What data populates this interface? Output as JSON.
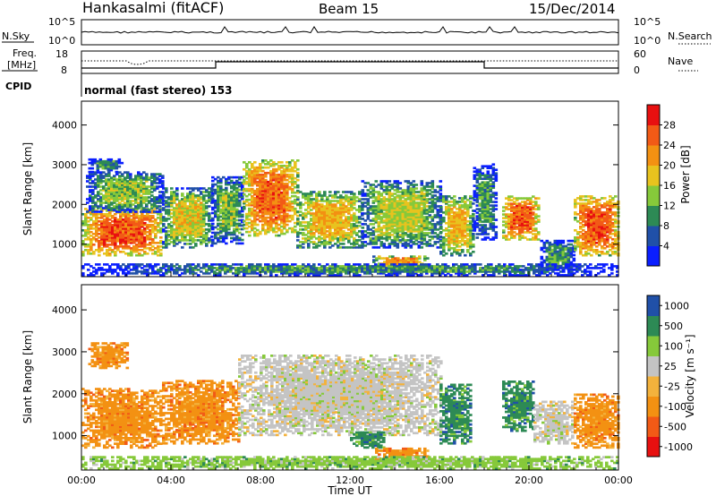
{
  "header": {
    "title": "Hankasalmi (fitACF)",
    "beam": "Beam 15",
    "date": "15/Dec/2014"
  },
  "noise_panel": {
    "left_label": "N.Sky",
    "right_label": "N.Search",
    "left_ticks": [
      "10^5",
      "10^0"
    ],
    "right_ticks": [
      "10^5",
      "10^0"
    ]
  },
  "freq_panel": {
    "left_label_line1": "Freq.",
    "left_label_line2": "[MHz]",
    "left_ticks": [
      "18",
      "8"
    ],
    "right_label": "Nave",
    "right_ticks": [
      "60",
      "0"
    ],
    "cpid_label": "CPID",
    "mode_text": "normal (fast stereo) 153"
  },
  "colors": {
    "power_scale": [
      "#0a1eff",
      "#2050a8",
      "#2d8a55",
      "#86c93a",
      "#e8c31e",
      "#f39112",
      "#f25a16",
      "#e81010"
    ],
    "velocity_scale": [
      "#e81010",
      "#f25a16",
      "#f39112",
      "#f3b23c",
      "#c4c4c4",
      "#86c93a",
      "#2d8a55",
      "#2050a8"
    ]
  },
  "chart_data": [
    {
      "type": "heatmap",
      "name": "power",
      "ylabel": "Slant Range [km]",
      "yticks": [
        1000,
        2000,
        3000,
        4000
      ],
      "ylim": [
        180,
        4600
      ],
      "xlim": [
        0,
        24
      ],
      "colorbar_label": "Power [dB]",
      "colorbar_ticks": [
        4,
        8,
        12,
        16,
        20,
        24,
        28
      ],
      "colorbar_range": [
        0,
        32
      ],
      "blobs": [
        {
          "t0": 0.0,
          "t1": 3.6,
          "r0": 700,
          "r1": 1900,
          "level": 0.82
        },
        {
          "t0": 0.2,
          "t1": 3.6,
          "r0": 1800,
          "r1": 2800,
          "level": 0.45
        },
        {
          "t0": 0.3,
          "t1": 1.8,
          "r0": 2800,
          "r1": 3150,
          "level": 0.3
        },
        {
          "t0": 3.6,
          "t1": 5.8,
          "r0": 900,
          "r1": 2400,
          "level": 0.55
        },
        {
          "t0": 5.8,
          "t1": 7.2,
          "r0": 1000,
          "r1": 2700,
          "level": 0.42
        },
        {
          "t0": 7.2,
          "t1": 9.6,
          "r0": 1200,
          "r1": 3100,
          "level": 0.78
        },
        {
          "t0": 9.6,
          "t1": 12.5,
          "r0": 900,
          "r1": 2300,
          "level": 0.62
        },
        {
          "t0": 12.5,
          "t1": 16.0,
          "r0": 900,
          "r1": 2600,
          "level": 0.5
        },
        {
          "t0": 13.0,
          "t1": 15.5,
          "r0": 400,
          "r1": 700,
          "level": 0.68
        },
        {
          "t0": 16.0,
          "t1": 17.5,
          "r0": 700,
          "r1": 2200,
          "level": 0.62
        },
        {
          "t0": 17.5,
          "t1": 18.5,
          "r0": 1100,
          "r1": 3000,
          "level": 0.35
        },
        {
          "t0": 18.8,
          "t1": 20.4,
          "r0": 1100,
          "r1": 2200,
          "level": 0.8
        },
        {
          "t0": 20.5,
          "t1": 22.0,
          "r0": 300,
          "r1": 1100,
          "level": 0.35
        },
        {
          "t0": 22.0,
          "t1": 24.0,
          "r0": 700,
          "r1": 2200,
          "level": 0.83
        },
        {
          "t0": 0.0,
          "t1": 24.0,
          "r0": 200,
          "r1": 500,
          "level": 0.32
        }
      ]
    },
    {
      "type": "heatmap",
      "name": "velocity",
      "ylabel": "Slant Range [km]",
      "yticks": [
        1000,
        2000,
        3000,
        4000
      ],
      "ylim": [
        180,
        4600
      ],
      "xlim": [
        0,
        24
      ],
      "xlabel": "Time UT",
      "xticks": [
        "00:00",
        "04:00",
        "08:00",
        "12:00",
        "16:00",
        "20:00",
        "00:00"
      ],
      "colorbar_label": "Velocity [m s⁻¹]",
      "colorbar_ticks": [
        "1000",
        "500",
        "100",
        "25",
        "-25",
        "-100",
        "-500",
        "-1000"
      ],
      "blobs": [
        {
          "t0": 0.0,
          "t1": 3.6,
          "r0": 700,
          "r1": 2100,
          "class": 2
        },
        {
          "t0": 0.3,
          "t1": 2.0,
          "r0": 2600,
          "r1": 3200,
          "class": 2
        },
        {
          "t0": 3.6,
          "t1": 7.0,
          "r0": 800,
          "r1": 2300,
          "class": 2
        },
        {
          "t0": 7.0,
          "t1": 16.0,
          "r0": 1000,
          "r1": 2900,
          "class": 4
        },
        {
          "t0": 12.0,
          "t1": 13.5,
          "r0": 700,
          "r1": 1100,
          "class": 6
        },
        {
          "t0": 13.0,
          "t1": 15.5,
          "r0": 400,
          "r1": 700,
          "class": 2
        },
        {
          "t0": 16.0,
          "t1": 17.4,
          "r0": 800,
          "r1": 2200,
          "class": 6
        },
        {
          "t0": 18.8,
          "t1": 20.2,
          "r0": 1100,
          "r1": 2300,
          "class": 6
        },
        {
          "t0": 20.2,
          "t1": 22.0,
          "r0": 800,
          "r1": 1800,
          "class": 4
        },
        {
          "t0": 22.0,
          "t1": 24.0,
          "r0": 700,
          "r1": 2000,
          "class": 2
        },
        {
          "t0": 0.0,
          "t1": 24.0,
          "r0": 200,
          "r1": 500,
          "class": 5
        }
      ]
    }
  ]
}
